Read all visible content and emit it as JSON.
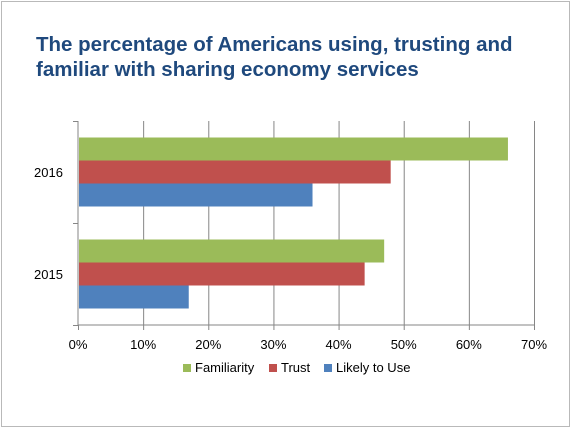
{
  "chart_data": {
    "type": "bar",
    "orientation": "horizontal",
    "title": "The percentage of Americans using, trusting and familiar with sharing economy services",
    "categories": [
      "2016",
      "2015"
    ],
    "series": [
      {
        "name": "Familiarity",
        "color": "#9bbb59",
        "values": [
          66,
          47
        ]
      },
      {
        "name": "Trust",
        "color": "#c0504d",
        "values": [
          48,
          44
        ]
      },
      {
        "name": "Likely to Use",
        "color": "#4f81bd",
        "values": [
          36,
          17
        ]
      }
    ],
    "xlim": [
      0,
      70
    ],
    "x_ticks": [
      "0%",
      "10%",
      "20%",
      "30%",
      "40%",
      "50%",
      "60%",
      "70%"
    ],
    "x_tick_values": [
      0,
      10,
      20,
      30,
      40,
      50,
      60,
      70
    ],
    "grid": "vertical",
    "legend": "bottom"
  }
}
